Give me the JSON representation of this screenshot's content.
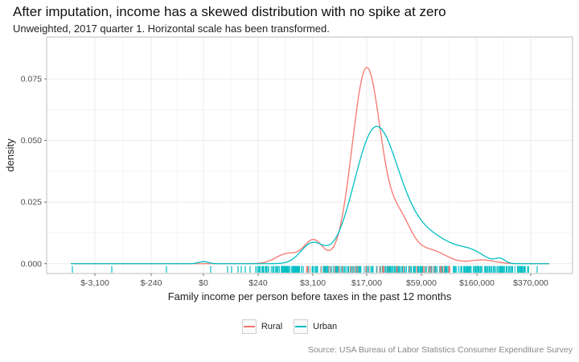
{
  "title": "After imputation, income has a skewed distribution with no spike at zero",
  "subtitle": "Unweighted, 2017 quarter 1. Horizontal scale has been transformed.",
  "caption": "Source: USA Bureau of Labor Statistics Consumer Expenditure Survey",
  "colors": {
    "rural": "#F8766D",
    "urban": "#00BFC4",
    "grid": "#ebebeb",
    "panel_border": "#bdbdbd"
  },
  "chart_data": {
    "type": "line",
    "xlabel": "Family income per person before taxes in the past 12 months",
    "ylabel": "density",
    "x_scale": "transformed (signed pseudo-log)",
    "x_ticks": [
      "$-3,100",
      "$-240",
      "$0",
      "$240",
      "$3,100",
      "$17,000",
      "$59,000",
      "$160,000",
      "$370,000"
    ],
    "y_ticks": [
      "0.000",
      "0.025",
      "0.050",
      "0.075"
    ],
    "ylim": [
      -0.004,
      0.092
    ],
    "grid": true,
    "legend_position": "bottom",
    "series": [
      {
        "name": "Rural",
        "x": [
          "$-3,100",
          "$-240",
          "$0",
          "$240",
          "$3,100",
          "$17,000",
          "$59,000",
          "$160,000",
          "$370,000"
        ],
        "y": [
          0.0,
          0.0,
          0.0005,
          0.0005,
          0.009,
          0.083,
          0.015,
          0.001,
          0.0
        ],
        "peak": {
          "x": "≈$17,000",
          "y": 0.088
        }
      },
      {
        "name": "Urban",
        "x": [
          "$-3,100",
          "$-240",
          "$0",
          "$240",
          "$3,100",
          "$17,000",
          "$59,000",
          "$160,000",
          "$370,000"
        ],
        "y": [
          0.0,
          0.0,
          0.0008,
          0.0005,
          0.008,
          0.061,
          0.03,
          0.004,
          0.0
        ],
        "peak": {
          "x": "≈$22,000",
          "y": 0.063
        }
      }
    ],
    "rug": "tick marks along the x axis for every observation (Rural and Urban)"
  }
}
